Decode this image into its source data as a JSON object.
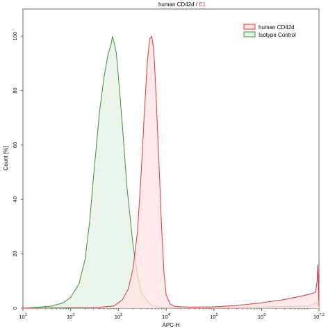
{
  "chart_data": {
    "type": "area",
    "title_main": "human CD42d / ",
    "title_gate": "E1",
    "xlabel": "APC-H",
    "ylabel": "Count [%]",
    "x_scale": "log",
    "xlim": [
      10,
      15848932
    ],
    "ylim": [
      0,
      110
    ],
    "y_ticks": [
      0,
      20,
      40,
      60,
      80,
      100
    ],
    "x_ticks": [
      {
        "base": "10",
        "exp": "1",
        "value": 10
      },
      {
        "base": "10",
        "exp": "2",
        "value": 100
      },
      {
        "base": "10",
        "exp": "3",
        "value": 1000
      },
      {
        "base": "10",
        "exp": "4",
        "value": 10000
      },
      {
        "base": "10",
        "exp": "5",
        "value": 100000
      },
      {
        "base": "10",
        "exp": "6",
        "value": 1000000
      },
      {
        "base": "10",
        "exp": "7.2",
        "value": 15848932
      }
    ],
    "legend": {
      "position": "top-right",
      "items": [
        {
          "label": "human CD42d",
          "stroke": "#e0333a",
          "fill": "#ffe2e4"
        },
        {
          "label": "Isotype Control",
          "stroke": "#3c8f3c",
          "fill": "#e6f2e4"
        }
      ]
    },
    "series": [
      {
        "name": "human CD42d",
        "stroke": "#e0333a",
        "fill": "#ffe2e4",
        "x": [
          10,
          300,
          800,
          1200,
          1600,
          2000,
          2500,
          3000,
          3500,
          4000,
          4500,
          5000,
          5500,
          6000,
          7000,
          8000,
          9000,
          10000,
          12000,
          15000,
          30000,
          100000,
          300000,
          1000000,
          3000000,
          7000000,
          12000000,
          13500000,
          14500000,
          15000000,
          15848932
        ],
        "y": [
          0,
          0.2,
          0.8,
          3,
          7,
          14,
          28,
          50,
          72,
          90,
          99,
          100,
          95,
          82,
          55,
          30,
          13,
          5,
          1.5,
          0.7,
          0.4,
          0.5,
          1.0,
          2.0,
          3.2,
          4.5,
          5.5,
          6,
          10,
          16,
          1
        ]
      },
      {
        "name": "Isotype Control",
        "stroke": "#3c8f3c",
        "fill": "#e6f2e4",
        "x": [
          10,
          20,
          40,
          70,
          100,
          150,
          200,
          250,
          300,
          400,
          500,
          600,
          700,
          750,
          800,
          900,
          1000,
          1200,
          1500,
          2000,
          2500,
          3000,
          4000,
          5000,
          7000,
          10000,
          100000,
          1000000,
          10000000,
          14000000,
          15848932
        ],
        "y": [
          0,
          0.3,
          0.8,
          2,
          4,
          9,
          18,
          32,
          48,
          72,
          85,
          93,
          97,
          100,
          98,
          94,
          85,
          68,
          45,
          24,
          12,
          6,
          2.5,
          1,
          0.4,
          0.3,
          0.3,
          0.4,
          0.8,
          2,
          0.5
        ]
      }
    ]
  }
}
